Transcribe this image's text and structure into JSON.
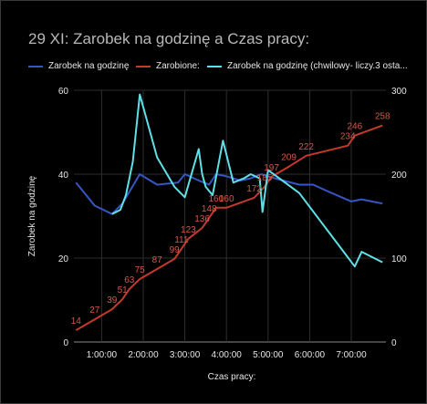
{
  "chart_data": {
    "type": "line",
    "title": "29 XI: Zarobek na godzinę a Czas pracy:",
    "xlabel": "Czas pracy:",
    "ylabel": "Zarobek na godzinę",
    "ylabel_right": "",
    "xlim": [
      "0:20:00",
      "7:50:00"
    ],
    "ylim_left": [
      0,
      60
    ],
    "ylim_right": [
      0,
      300
    ],
    "x_ticks": [
      "1:00:00",
      "2:00:00",
      "3:00:00",
      "4:00:00",
      "5:00:00",
      "6:00:00",
      "7:00:00"
    ],
    "y_ticks_left": [
      "0",
      "20",
      "40",
      "60"
    ],
    "y_ticks_right": [
      "0",
      "100",
      "200",
      "300"
    ],
    "grid": true,
    "legend_position": "top",
    "series": [
      {
        "name": "Zarobek na godzinę",
        "axis": "left",
        "color": "#3557c6",
        "x": [
          "0:23:00",
          "0:50:00",
          "1:15:00",
          "1:30:00",
          "1:55:00",
          "2:20:00",
          "2:50:00",
          "3:00:00",
          "3:20:00",
          "3:35:00",
          "3:45:00",
          "4:00:00",
          "4:20:00",
          "4:35:00",
          "4:50:00",
          "5:10:00",
          "5:45:00",
          "6:05:00",
          "6:25:00",
          "7:00:00",
          "7:15:00",
          "7:45:00"
        ],
        "values": [
          38,
          32.5,
          30.5,
          33,
          40,
          37.5,
          38,
          40,
          38.5,
          37.5,
          40,
          39.5,
          38.5,
          39,
          40,
          39,
          37.5,
          37.5,
          36,
          33.5,
          34,
          33
        ]
      },
      {
        "name": "Zarobione:",
        "axis": "right",
        "color": "#c23a2c",
        "x": [
          "0:23:00",
          "0:50:00",
          "1:15:00",
          "1:30:00",
          "1:40:00",
          "1:55:00",
          "2:20:00",
          "2:45:00",
          "2:55:00",
          "3:05:00",
          "3:25:00",
          "3:35:00",
          "3:45:00",
          "4:00:00",
          "4:40:00",
          "4:55:00",
          "5:05:00",
          "5:30:00",
          "5:55:00",
          "6:55:00",
          "7:05:00",
          "7:45:00"
        ],
        "values": [
          14,
          27,
          39,
          51,
          63,
          75,
          87,
          99,
          111,
          123,
          136,
          148,
          160,
          160,
          172,
          185,
          197,
          209,
          222,
          234,
          246,
          258
        ],
        "data_labels": [
          "14",
          "27",
          "39",
          "51",
          "63",
          "75",
          "87",
          "99",
          "111",
          "123",
          "136",
          "148",
          "160",
          "160",
          "172",
          "185",
          "197",
          "209",
          "222",
          "234",
          "246",
          "258"
        ]
      },
      {
        "name": "Zarobek na godzinę (chwilowy- liczy.3 osta...",
        "axis": "left",
        "color": "#5fe0e6",
        "x": [
          "1:15:00",
          "1:27:00",
          "1:35:00",
          "1:45:00",
          "1:55:00",
          "2:20:00",
          "2:45:00",
          "3:00:00",
          "3:20:00",
          "3:25:00",
          "3:30:00",
          "3:40:00",
          "3:55:00",
          "4:10:00",
          "4:25:00",
          "4:35:00",
          "4:48:00",
          "4:52:00",
          "5:00:00",
          "5:45:00",
          "7:05:00",
          "7:15:00",
          "7:45:00"
        ],
        "values": [
          30.5,
          31.5,
          35,
          43,
          59,
          44,
          37,
          34.5,
          46,
          40,
          37,
          35,
          48,
          38,
          39,
          40,
          39,
          31,
          41,
          35.5,
          18,
          21.5,
          19
        ]
      }
    ]
  }
}
